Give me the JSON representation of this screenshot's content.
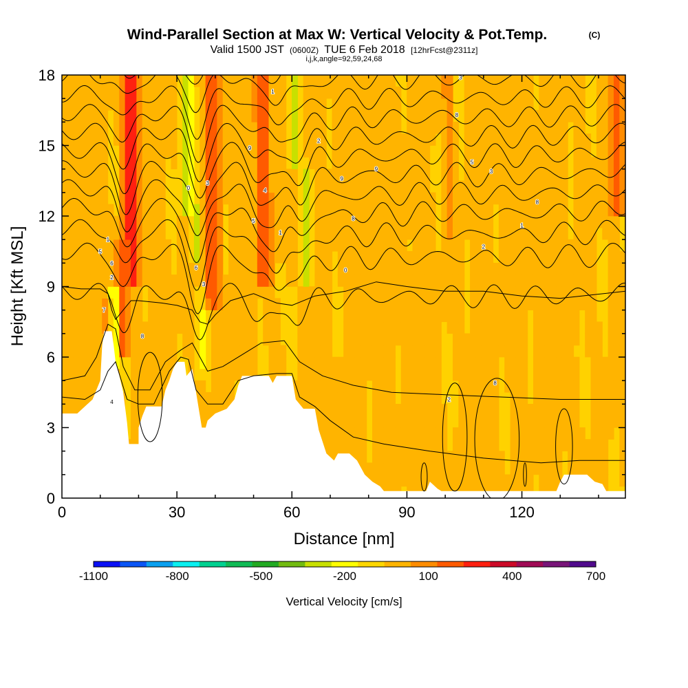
{
  "chart_data": {
    "type": "heatmap",
    "title": "Wind-Parallel Section at Max W: Vertical Velocity & Pot.Temp.",
    "title_mark": "(C)",
    "subtitle": {
      "valid": "Valid 1500 JST",
      "utc": "(0600Z)",
      "date": "TUE 6 Feb 2018",
      "forecast": "[12hrFcst@2311z]"
    },
    "indices": "i,j,k,angle=92,59,24,68",
    "xlabel": "Distance [nm]",
    "ylabel": "Height [Kft MSL]",
    "xlim": [
      0,
      147
    ],
    "ylim": [
      0,
      18
    ],
    "x_ticks": [
      "0",
      "30",
      "60",
      "90",
      "120"
    ],
    "x_tick_values": [
      0,
      30,
      60,
      90,
      120
    ],
    "y_ticks": [
      "0",
      "3",
      "6",
      "9",
      "12",
      "15",
      "18"
    ],
    "y_tick_values": [
      0,
      3,
      6,
      9,
      12,
      15,
      18
    ],
    "colorbar": {
      "label": "Vertical Velocity [cm/s]",
      "tick_labels": [
        "-1100",
        "-800",
        "-500",
        "-200",
        "100",
        "400",
        "700"
      ],
      "colors": [
        "#0a10f5",
        "#0a55f5",
        "#0aa0f0",
        "#0af0f0",
        "#00d190",
        "#10bb55",
        "#22aa22",
        "#72bb10",
        "#c8e000",
        "#ffff00",
        "#ffd700",
        "#ffb400",
        "#ff8c00",
        "#ff5a00",
        "#ff2010",
        "#cc0a28",
        "#a00a55",
        "#781478",
        "#500a8c"
      ]
    },
    "velocity_bands": [
      {
        "x_center": 2,
        "x_half_width": 3,
        "value": 80,
        "z_range": [
          0,
          18
        ]
      },
      {
        "x_center": 9,
        "x_half_width": 2,
        "value": 100,
        "z_range": [
          0,
          18
        ]
      },
      {
        "x_center": 18,
        "x_half_width": 2.2,
        "value": 380,
        "z_range": [
          9,
          18
        ]
      },
      {
        "x_center": 16,
        "x_half_width": 1.8,
        "value": 250,
        "z_range": [
          6,
          11
        ]
      },
      {
        "x_center": 13,
        "x_half_width": 1.3,
        "value": 330,
        "z_range": [
          6.5,
          8.5
        ]
      },
      {
        "x_center": 13.5,
        "x_half_width": 1.2,
        "value": -280,
        "z_range": [
          5.5,
          9
        ]
      },
      {
        "x_center": 25,
        "x_half_width": 2,
        "value": 90,
        "z_range": [
          0,
          18
        ]
      },
      {
        "x_center": 32.5,
        "x_half_width": 1.6,
        "value": -290,
        "z_range": [
          12,
          18
        ]
      },
      {
        "x_center": 35,
        "x_half_width": 1.4,
        "value": -240,
        "z_range": [
          10,
          12.5
        ]
      },
      {
        "x_center": 36,
        "x_half_width": 1.3,
        "value": -140,
        "z_range": [
          5,
          9
        ]
      },
      {
        "x_center": 39.5,
        "x_half_width": 2,
        "value": 300,
        "z_range": [
          8,
          18
        ]
      },
      {
        "x_center": 47,
        "x_half_width": 2,
        "value": 90,
        "z_range": [
          5,
          18
        ]
      },
      {
        "x_center": 52.5,
        "x_half_width": 1.8,
        "value": 330,
        "z_range": [
          9,
          18
        ]
      },
      {
        "x_center": 60,
        "x_half_width": 0.9,
        "value": -170,
        "z_range": [
          5,
          9
        ]
      },
      {
        "x_center": 59,
        "x_half_width": 2,
        "value": 80,
        "z_range": [
          10,
          18
        ]
      },
      {
        "x_center": 60.5,
        "x_half_width": 1.2,
        "value": -280,
        "z_range": [
          14,
          18
        ]
      },
      {
        "x_center": 64,
        "x_half_width": 1.6,
        "value": -260,
        "z_range": [
          9,
          14
        ]
      },
      {
        "x_center": 67,
        "x_half_width": 1.8,
        "value": 90,
        "z_range": [
          0,
          18
        ]
      },
      {
        "x_center": 76,
        "x_half_width": 2.5,
        "value": 80,
        "z_range": [
          0,
          18
        ]
      },
      {
        "x_center": 84,
        "x_half_width": 2.5,
        "value": 85,
        "z_range": [
          0,
          18
        ]
      },
      {
        "x_center": 94,
        "x_half_width": 2,
        "value": 80,
        "z_range": [
          0,
          18
        ]
      },
      {
        "x_center": 101,
        "x_half_width": 1.2,
        "value": 150,
        "z_range": [
          11,
          18
        ]
      },
      {
        "x_center": 102,
        "x_half_width": 0.5,
        "value": -160,
        "z_range": [
          3,
          5
        ]
      },
      {
        "x_center": 110,
        "x_half_width": 2.5,
        "value": 90,
        "z_range": [
          0,
          18
        ]
      },
      {
        "x_center": 119,
        "x_half_width": 2,
        "value": 80,
        "z_range": [
          0,
          18
        ]
      },
      {
        "x_center": 128,
        "x_half_width": 2.5,
        "value": 85,
        "z_range": [
          0,
          18
        ]
      },
      {
        "x_center": 145,
        "x_half_width": 2,
        "value": 260,
        "z_range": [
          12,
          18
        ]
      }
    ],
    "terrain": [
      [
        0,
        3.6
      ],
      [
        4,
        3.6
      ],
      [
        6,
        3.9
      ],
      [
        8,
        4.2
      ],
      [
        10,
        5
      ],
      [
        10.5,
        6.5
      ],
      [
        11,
        7.1
      ],
      [
        13,
        7.1
      ],
      [
        13.5,
        6.5
      ],
      [
        14,
        5.8
      ],
      [
        15,
        5.2
      ],
      [
        16,
        4.5
      ],
      [
        17,
        3.2
      ],
      [
        17.5,
        2.3
      ],
      [
        20,
        2.3
      ],
      [
        20,
        3
      ],
      [
        21,
        3.5
      ],
      [
        22,
        3.9
      ],
      [
        26,
        3.9
      ],
      [
        27,
        4.6
      ],
      [
        28,
        5
      ],
      [
        29,
        5.5
      ],
      [
        30,
        5.8
      ],
      [
        32,
        5.8
      ],
      [
        32.5,
        5.2
      ],
      [
        34,
        5.5
      ],
      [
        35,
        4.5
      ],
      [
        36,
        3.5
      ],
      [
        36.5,
        3
      ],
      [
        37.5,
        3
      ],
      [
        38,
        3.3
      ],
      [
        40,
        3.6
      ],
      [
        43,
        3.8
      ],
      [
        45,
        4.2
      ],
      [
        46,
        4.8
      ],
      [
        47,
        5.2
      ],
      [
        54,
        5.2
      ],
      [
        55,
        4.9
      ],
      [
        56,
        5.2
      ],
      [
        60,
        5.2
      ],
      [
        61,
        4.2
      ],
      [
        63,
        3.8
      ],
      [
        66,
        3.8
      ],
      [
        67,
        2.9
      ],
      [
        68,
        2.4
      ],
      [
        69,
        1.9
      ],
      [
        71,
        1.6
      ],
      [
        72,
        1.9
      ],
      [
        75,
        1.9
      ],
      [
        77,
        1.6
      ],
      [
        78,
        1.3
      ],
      [
        79,
        1
      ],
      [
        81,
        0.7
      ],
      [
        83,
        0.5
      ],
      [
        84,
        0.3
      ],
      [
        95,
        0.3
      ],
      [
        96,
        0.7
      ],
      [
        98,
        0.4
      ],
      [
        99,
        0.3
      ],
      [
        129,
        0.3
      ],
      [
        130,
        0.7
      ],
      [
        131,
        1
      ],
      [
        137,
        1
      ],
      [
        139,
        0.7
      ],
      [
        141,
        0.6
      ],
      [
        142,
        0.3
      ],
      [
        147,
        0.3
      ]
    ],
    "isentropes": [
      {
        "level": 0,
        "kind": "wave",
        "z0": 8.8
      },
      {
        "level": 1,
        "kind": "wave",
        "z0": 10.5
      },
      {
        "level": 2,
        "kind": "wave",
        "z0": 11.5
      },
      {
        "level": 3,
        "kind": "wave",
        "z0": 12.4
      },
      {
        "level": 4,
        "kind": "wave",
        "z0": 13.2
      },
      {
        "level": 5,
        "kind": "wave",
        "z0": 14.0
      },
      {
        "level": 6,
        "kind": "wave",
        "z0": 14.8
      },
      {
        "level": 7,
        "kind": "wave",
        "z0": 15.6
      },
      {
        "level": 8,
        "kind": "wave",
        "z0": 16.4
      },
      {
        "level": 9,
        "kind": "wave",
        "z0": 17.2
      },
      {
        "level": 10,
        "kind": "wave",
        "z0": 18.0
      },
      {
        "level": 11,
        "kind": "wave",
        "z0": 18.8
      },
      {
        "level": 12,
        "kind": "low",
        "points": [
          [
            0,
            4.3
          ],
          [
            6,
            4.2
          ],
          [
            10,
            4.6
          ],
          [
            12,
            5.4
          ],
          [
            14,
            5.8
          ],
          [
            17,
            4.2
          ],
          [
            20,
            4.0
          ],
          [
            24,
            4.0
          ],
          [
            28,
            5.4
          ],
          [
            31,
            6.0
          ],
          [
            33,
            5.9
          ],
          [
            35,
            4.6
          ],
          [
            38,
            4.0
          ],
          [
            42,
            4.0
          ],
          [
            46,
            5.0
          ],
          [
            50,
            5.2
          ],
          [
            56,
            5.3
          ],
          [
            60,
            5.3
          ],
          [
            62,
            4.3
          ],
          [
            66,
            3.9
          ],
          [
            70,
            3.3
          ],
          [
            76,
            2.6
          ],
          [
            84,
            2.3
          ],
          [
            96,
            2.0
          ],
          [
            110,
            1.7
          ],
          [
            125,
            1.5
          ],
          [
            135,
            1.6
          ],
          [
            147,
            1.6
          ]
        ]
      },
      {
        "level": 13,
        "kind": "low",
        "points": [
          [
            0,
            5.0
          ],
          [
            6,
            5.2
          ],
          [
            9,
            6.0
          ],
          [
            12,
            7.4
          ],
          [
            14,
            7.2
          ],
          [
            16,
            5.6
          ],
          [
            19,
            4.6
          ],
          [
            23,
            4.6
          ],
          [
            27,
            5.8
          ],
          [
            31,
            6.3
          ],
          [
            34,
            6.6
          ],
          [
            38,
            5.4
          ],
          [
            42,
            5.6
          ],
          [
            48,
            6.2
          ],
          [
            52,
            6.6
          ],
          [
            58,
            6.7
          ],
          [
            62,
            5.8
          ],
          [
            68,
            5.2
          ],
          [
            76,
            4.8
          ],
          [
            86,
            4.5
          ],
          [
            100,
            4.4
          ],
          [
            115,
            4.3
          ],
          [
            130,
            4.2
          ],
          [
            147,
            4.2
          ]
        ]
      },
      {
        "level": 14,
        "kind": "low",
        "points": [
          [
            0,
            9.0
          ],
          [
            5,
            8.9
          ],
          [
            10,
            8.9
          ],
          [
            12,
            8.7
          ],
          [
            13,
            8.0
          ],
          [
            14,
            7.6
          ],
          [
            16,
            8.0
          ],
          [
            18,
            8.4
          ],
          [
            20,
            8.4
          ],
          [
            26,
            8.3
          ],
          [
            30,
            8.2
          ],
          [
            34,
            8.0
          ],
          [
            36,
            7.5
          ],
          [
            38,
            7.4
          ],
          [
            40,
            7.8
          ],
          [
            44,
            8.4
          ],
          [
            50,
            8.7
          ],
          [
            56,
            8.3
          ],
          [
            60,
            8.2
          ],
          [
            66,
            8.6
          ],
          [
            74,
            8.8
          ],
          [
            82,
            9.2
          ],
          [
            90,
            9.0
          ],
          [
            100,
            8.8
          ],
          [
            110,
            8.8
          ],
          [
            120,
            8.6
          ],
          [
            130,
            8.5
          ],
          [
            147,
            8.8
          ]
        ]
      }
    ],
    "closed_contours": [
      {
        "cx": 23,
        "cy": 4.3,
        "rx": 3.2,
        "ry": 1.9
      },
      {
        "cx": 102.5,
        "cy": 2.6,
        "rx": 3.2,
        "ry": 2.3
      },
      {
        "cx": 113.5,
        "cy": 2.5,
        "rx": 5.8,
        "ry": 2.6
      },
      {
        "cx": 131,
        "cy": 2.2,
        "rx": 2.2,
        "ry": 1.6
      },
      {
        "cx": 94.5,
        "cy": 0.9,
        "rx": 0.8,
        "ry": 0.6
      },
      {
        "cx": 120.8,
        "cy": 1.0,
        "rx": 0.4,
        "ry": 0.5
      }
    ],
    "contour_labels": [
      {
        "x": 13,
        "y": 4.1,
        "text": "4"
      },
      {
        "x": 21,
        "y": 6.9,
        "text": "8"
      },
      {
        "x": 13,
        "y": 9.4,
        "text": "2"
      },
      {
        "x": 11,
        "y": 8.0,
        "text": "7"
      },
      {
        "x": 13,
        "y": 10.0,
        "text": "6"
      },
      {
        "x": 10,
        "y": 10.5,
        "text": "5"
      },
      {
        "x": 12,
        "y": 11.0,
        "text": "1"
      },
      {
        "x": 37,
        "y": 9.1,
        "text": "3"
      },
      {
        "x": 35,
        "y": 9.8,
        "text": "6"
      },
      {
        "x": 33,
        "y": 13.2,
        "text": "0"
      },
      {
        "x": 38,
        "y": 13.4,
        "text": "3"
      },
      {
        "x": 49,
        "y": 14.9,
        "text": "9"
      },
      {
        "x": 50,
        "y": 11.8,
        "text": "5"
      },
      {
        "x": 53,
        "y": 13.1,
        "text": "4"
      },
      {
        "x": 55,
        "y": 17.3,
        "text": "1"
      },
      {
        "x": 67,
        "y": 15.2,
        "text": "2"
      },
      {
        "x": 57,
        "y": 11.3,
        "text": "1"
      },
      {
        "x": 73,
        "y": 13.6,
        "text": "9"
      },
      {
        "x": 82,
        "y": 14.0,
        "text": "9"
      },
      {
        "x": 76,
        "y": 11.9,
        "text": "8"
      },
      {
        "x": 74,
        "y": 9.7,
        "text": "0"
      },
      {
        "x": 104,
        "y": 17.9,
        "text": "3"
      },
      {
        "x": 103,
        "y": 16.3,
        "text": "8"
      },
      {
        "x": 107,
        "y": 14.3,
        "text": "5"
      },
      {
        "x": 112,
        "y": 13.9,
        "text": "3"
      },
      {
        "x": 110,
        "y": 10.7,
        "text": "2"
      },
      {
        "x": 124,
        "y": 12.6,
        "text": "8"
      },
      {
        "x": 120,
        "y": 11.6,
        "text": "1"
      },
      {
        "x": 101,
        "y": 4.2,
        "text": "2"
      },
      {
        "x": 113,
        "y": 4.9,
        "text": "8"
      }
    ]
  }
}
